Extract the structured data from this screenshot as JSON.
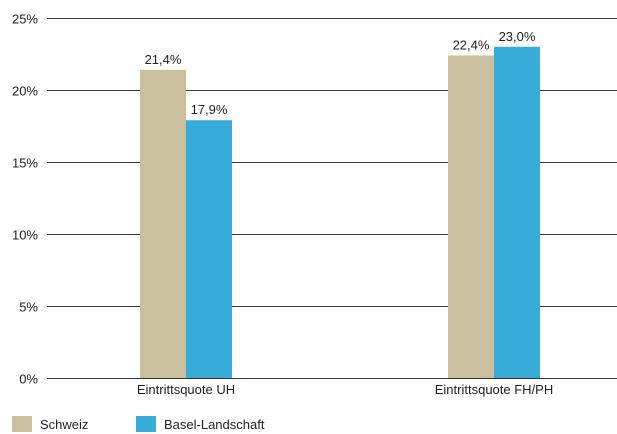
{
  "chart_data": {
    "type": "bar",
    "categories": [
      "Eintrittsquote UH",
      "Eintrittsquote FH/PH"
    ],
    "series": [
      {
        "name": "Schweiz",
        "color": "#c9bf9d",
        "values": [
          21.4,
          22.4
        ],
        "labels": [
          "21,4%",
          "22,4%"
        ]
      },
      {
        "name": "Basel-Landschaft",
        "color": "#37acd9",
        "values": [
          17.9,
          23.0
        ],
        "labels": [
          "17,9%",
          "23,0%"
        ]
      }
    ],
    "yticks": [
      {
        "value": 0,
        "label": "0%"
      },
      {
        "value": 5,
        "label": "5%"
      },
      {
        "value": 10,
        "label": "10%"
      },
      {
        "value": 15,
        "label": "15%"
      },
      {
        "value": 20,
        "label": "20%"
      },
      {
        "value": 25,
        "label": "25%"
      }
    ],
    "ylim": [
      0,
      25
    ],
    "grid": true,
    "legend_position": "bottom-left",
    "title": "",
    "xlabel": "",
    "ylabel": ""
  }
}
